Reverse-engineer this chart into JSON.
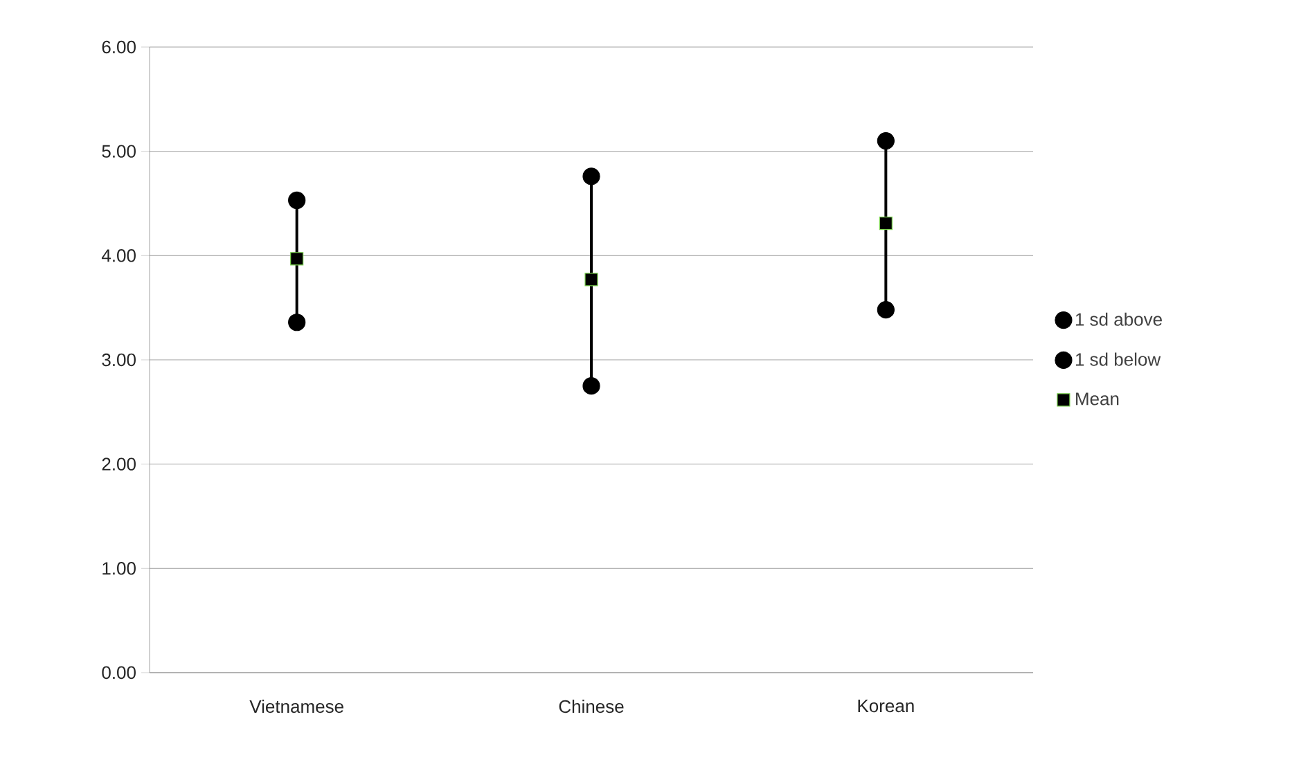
{
  "chart_data": {
    "type": "scatter",
    "categories": [
      "Vietnamese",
      "Chinese",
      "Korean"
    ],
    "series": [
      {
        "name": "1 sd above",
        "color": "#000000",
        "marker": "circle",
        "values": [
          4.53,
          4.76,
          5.1
        ]
      },
      {
        "name": "1 sd below",
        "color": "#000000",
        "marker": "circle",
        "values": [
          3.36,
          2.75,
          3.48
        ]
      },
      {
        "name": "Mean",
        "color": "#000000",
        "marker": "square",
        "values": [
          3.97,
          3.77,
          4.31
        ]
      }
    ],
    "ylim": [
      0,
      6
    ],
    "yticks": [
      {
        "value": 0,
        "label": "0.00"
      },
      {
        "value": 1,
        "label": "1.00"
      },
      {
        "value": 2,
        "label": "2.00"
      },
      {
        "value": 3,
        "label": "3.00"
      },
      {
        "value": 4,
        "label": "4.00"
      },
      {
        "value": 5,
        "label": "5.00"
      },
      {
        "value": 6,
        "label": "6.00"
      }
    ],
    "grid": "y",
    "legend": "right"
  }
}
